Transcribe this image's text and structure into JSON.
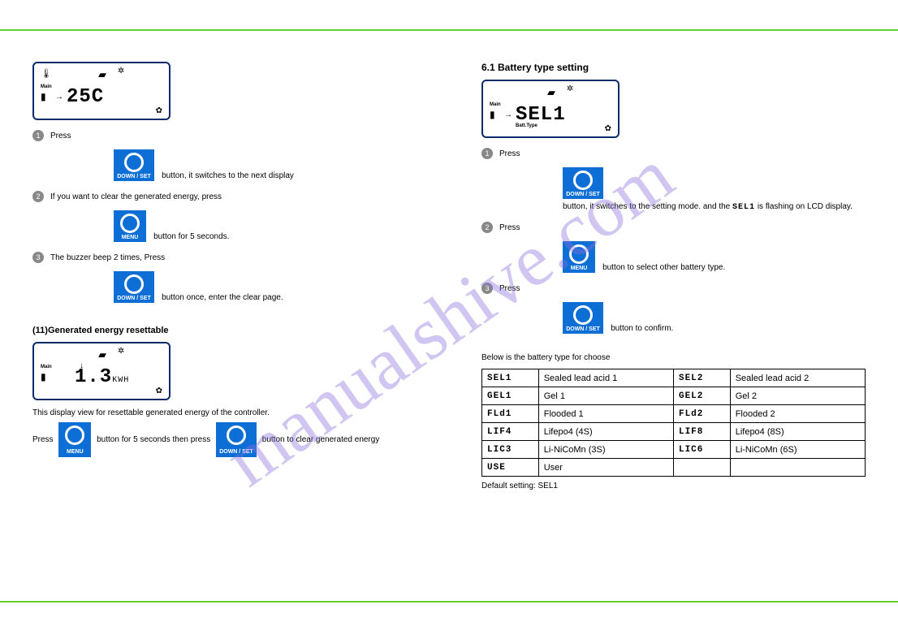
{
  "colors": {
    "rule": "#66cc33",
    "button_bg": "#0d6fd6",
    "lcd_border": "#0a2a6a",
    "watermark": "rgba(140,110,220,0.4)"
  },
  "watermark": "manualshive.com",
  "buttons": {
    "down_set": "DOWN / SET",
    "menu": "MENU"
  },
  "left_page": {
    "lcd1": {
      "value": "25C",
      "main": "Main"
    },
    "step1": {
      "num": "1",
      "text_before": "Press",
      "text_after": "button, it switches to the next display"
    },
    "step2": {
      "num": "2",
      "text_before": "If you want to clear the generated energy, press",
      "text_after": "button for 5 seconds."
    },
    "step3": {
      "num": "3",
      "text_before": "The buzzer beep 2 times, Press",
      "text_after": "button once, enter the clear page."
    },
    "section11": "(11)Generated energy resettable",
    "lcd2": {
      "value": "1.3",
      "unit": "KWH",
      "main": "Main"
    },
    "note_a": "This display view for resettable generated energy of the controller.",
    "note_b_pre": "Press",
    "note_b_mid": "button for 5 seconds then press",
    "note_b_post": "button to clear generated energy"
  },
  "right_page": {
    "section61": "6.1 Battery type setting",
    "lcd3": {
      "value": "SEL1",
      "sub": "Batt.Type",
      "main": "Main"
    },
    "step1": {
      "num": "1",
      "text_before": "Press",
      "text_mid": "button, it switches to the setting mode. and the",
      "text_after": "is flashing on LCD display."
    },
    "step2": {
      "num": "2",
      "text_before": "Press",
      "text_after": "button to select other battery type."
    },
    "step3": {
      "num": "3",
      "text_before": "Press",
      "text_after": "button to confirm."
    },
    "table_intro": "Below is the battery type for choose",
    "table": [
      [
        "SEL1",
        "Sealed lead acid 1",
        "SEL2",
        "Sealed lead acid 2"
      ],
      [
        "GEL1",
        "Gel 1",
        "GEL2",
        "Gel 2"
      ],
      [
        "FLd1",
        "Flooded 1",
        "FLd2",
        "Flooded 2"
      ],
      [
        "LIF4",
        "Lifepo4 (4S)",
        "LIF8",
        "Lifepo4 (8S)"
      ],
      [
        "LIC3",
        "Li-NiCoMn (3S)",
        "LIC6",
        "Li-NiCoMn (6S)"
      ],
      [
        "USE",
        "User",
        "",
        ""
      ]
    ],
    "table_note": "Default setting: SEL1"
  }
}
